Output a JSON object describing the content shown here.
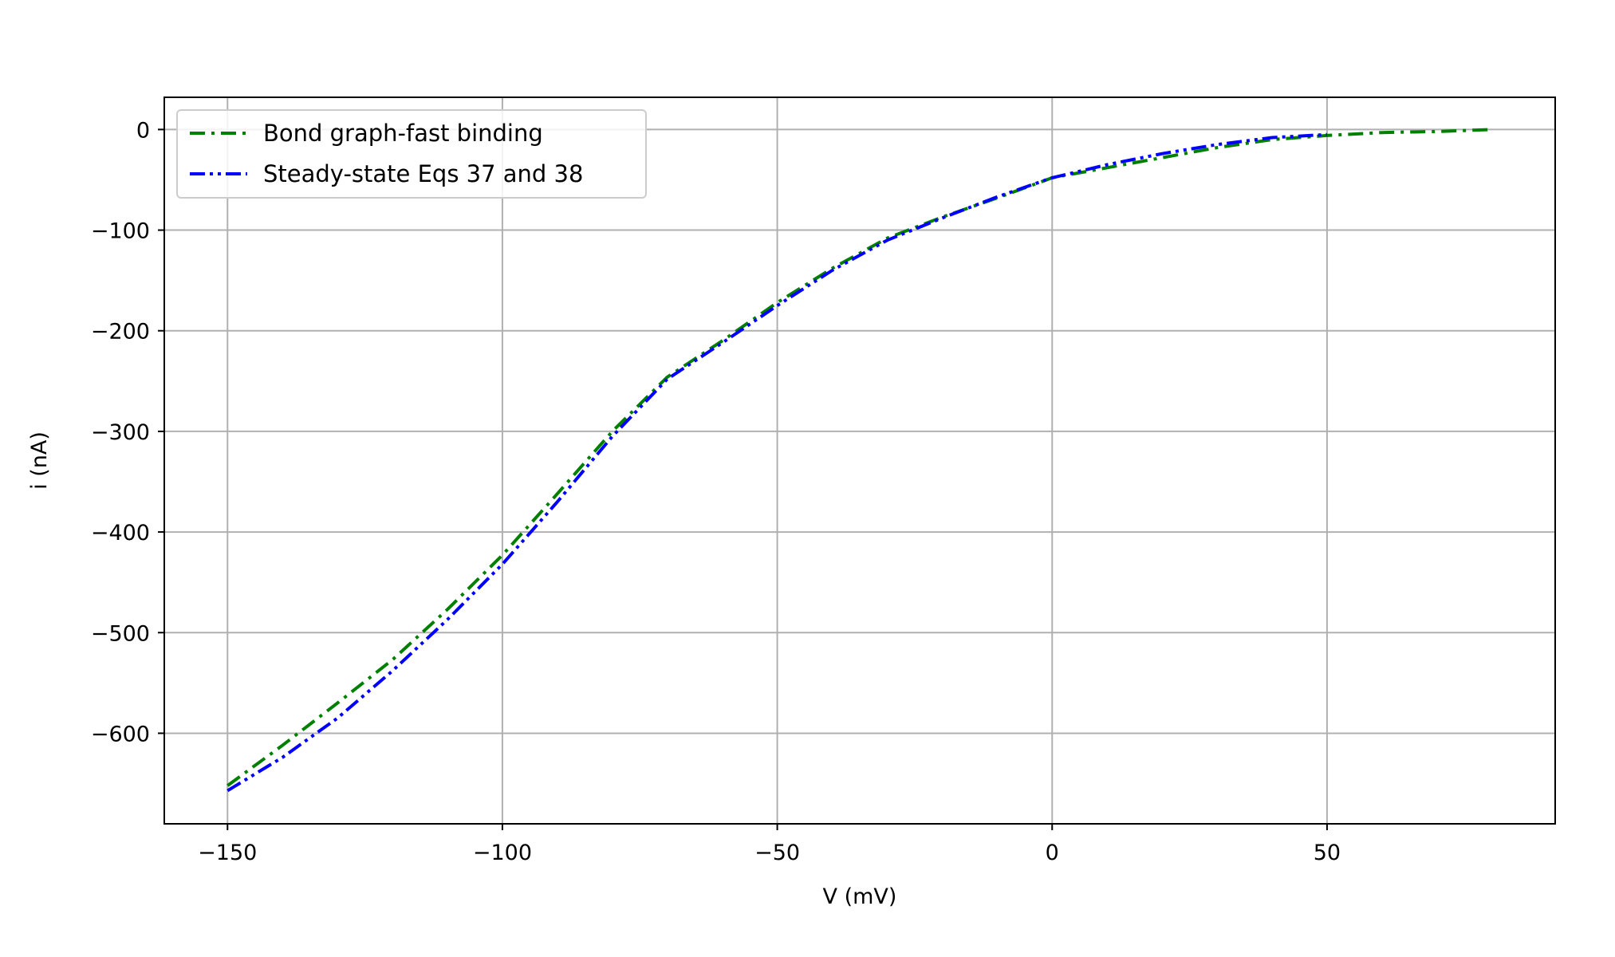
{
  "chart_data": {
    "type": "line",
    "xlabel": "V (mV)",
    "ylabel": "i (nA)",
    "xlim": [
      -161.5,
      91.5
    ],
    "ylim": [
      -690,
      32
    ],
    "x_ticks": [
      -150,
      -100,
      -50,
      0,
      50
    ],
    "x_tick_labels": [
      "−150",
      "−100",
      "−50",
      "0",
      "50"
    ],
    "y_ticks": [
      0,
      -100,
      -200,
      -300,
      -400,
      -500,
      -600
    ],
    "y_tick_labels": [
      "0",
      "−100",
      "−200",
      "−300",
      "−400",
      "−500",
      "−600"
    ],
    "grid": true,
    "legend_position": "top-left",
    "series": [
      {
        "name": "Bond graph-fast binding",
        "color": "#008000",
        "line_style": "dash-dot",
        "x": [
          -150,
          -140,
          -130,
          -120,
          -110,
          -100,
          -90,
          -80,
          -70,
          -60,
          -50,
          -40,
          -30,
          -20,
          -10,
          0,
          10,
          20,
          30,
          40,
          50,
          60,
          70,
          80
        ],
        "y": [
          -652,
          -612,
          -570,
          -527,
          -477,
          -423,
          -362,
          -300,
          -246,
          -210,
          -172,
          -138,
          -108,
          -87,
          -68,
          -48,
          -38,
          -28,
          -18,
          -10,
          -6,
          -3,
          -2,
          0
        ]
      },
      {
        "name": "Steady-state Eqs 37 and 38",
        "color": "#0000ff",
        "line_style": "dash-dot-dot",
        "x": [
          -150,
          -140,
          -130,
          -120,
          -110,
          -100,
          -90,
          -80,
          -70,
          -60,
          -50,
          -40,
          -30,
          -20,
          -10,
          0,
          10,
          20,
          30,
          40,
          50
        ],
        "y": [
          -657,
          -624,
          -585,
          -538,
          -487,
          -432,
          -370,
          -305,
          -248,
          -212,
          -175,
          -140,
          -110,
          -88,
          -67,
          -48,
          -35,
          -24,
          -15,
          -8,
          -5
        ]
      }
    ]
  }
}
